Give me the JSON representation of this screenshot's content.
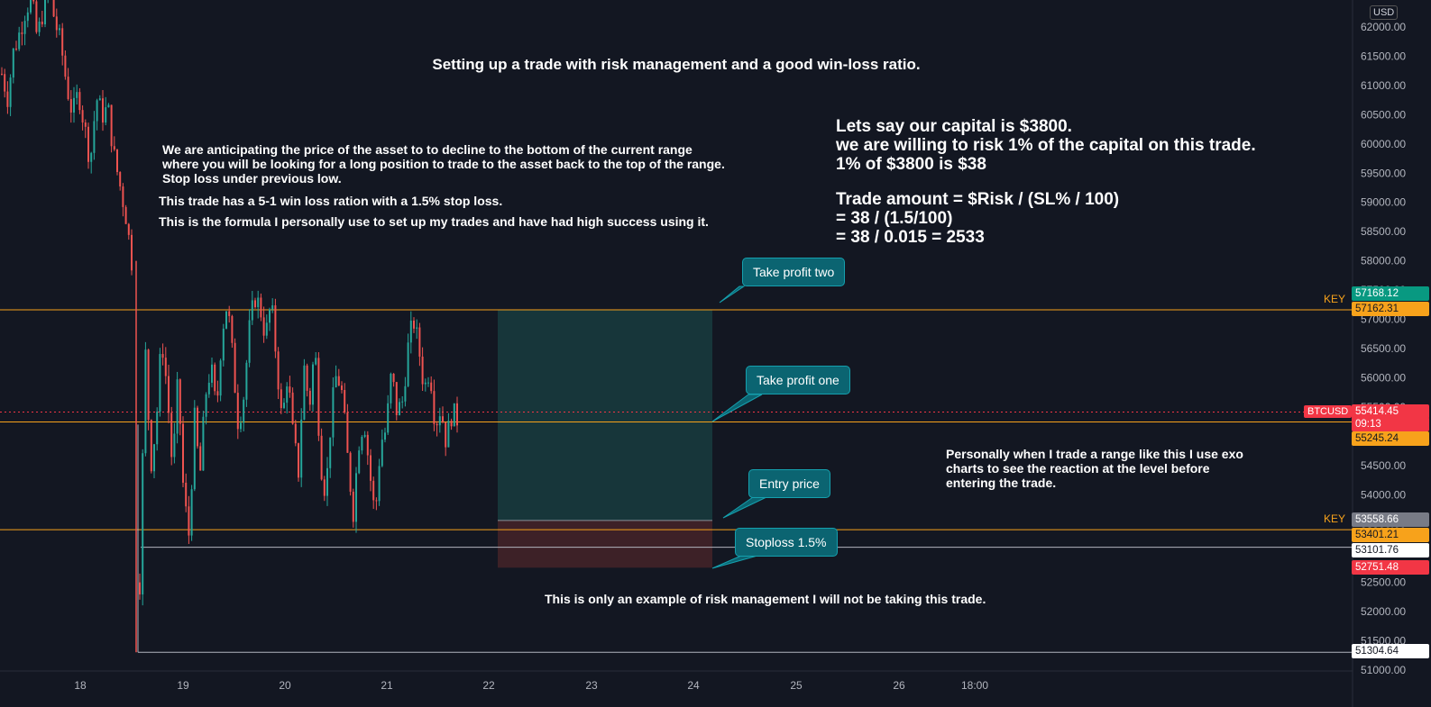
{
  "chart_data": {
    "type": "candlestick",
    "symbol": "BTCUSD",
    "currency": "USD",
    "current_price": "55414.45",
    "countdown": "09:13",
    "ylim": [
      51000,
      62500
    ],
    "y_ticks": [
      62000,
      61500,
      61000,
      60500,
      60000,
      59500,
      59000,
      58500,
      58000,
      57500,
      57000,
      56500,
      56000,
      55500,
      55000,
      54500,
      54000,
      53500,
      53000,
      52500,
      52000,
      51500,
      51000
    ],
    "x_ticks": [
      "18",
      "19",
      "20",
      "21",
      "22",
      "23",
      "24",
      "25",
      "26",
      "18:00"
    ],
    "price_path": [
      [
        61200,
        60800,
        61600,
        61900,
        62300,
        62500,
        61800,
        62300,
        62600,
        62100,
        61700,
        61000,
        60500,
        60900,
        60300,
        59700,
        60800,
        60500,
        60600,
        59800,
        59300,
        58800,
        58000
      ],
      [
        52500,
        56500,
        54500,
        55200,
        56700,
        55800,
        54400,
        56000,
        54000,
        53300,
        55300,
        54300,
        55700,
        56200,
        55400,
        56800,
        57300,
        56300,
        55200,
        55700,
        56800,
        57400,
        57200,
        56700,
        57300,
        56300,
        55200,
        56100,
        55000,
        54400,
        56200,
        55500,
        56600,
        54600,
        54000,
        55400,
        56100,
        55700,
        54600,
        53700,
        54900,
        55300,
        54400,
        53600,
        54900,
        55100,
        56100,
        55400,
        55600,
        56500,
        57000,
        56500,
        55800,
        56200,
        55200,
        55500,
        54900,
        55400,
        55300
      ]
    ],
    "levels": [
      {
        "name": "KEY",
        "price": "57162.31",
        "color": "#f7a21b"
      },
      {
        "name": "",
        "price": "55245.24",
        "color": "#f7a21b"
      },
      {
        "name": "KEY",
        "price": "53401.21",
        "color": "#f7a21b"
      },
      {
        "name": "",
        "price": "53101.76",
        "color": "#b2b5be"
      },
      {
        "name": "",
        "price": "51304.64",
        "color": "#b2b5be"
      }
    ],
    "price_labels": [
      {
        "price": "57168.12",
        "bg": "#089981",
        "fg": "#ffffff"
      },
      {
        "price": "57162.31",
        "bg": "#f7a21b",
        "fg": "#131722"
      },
      {
        "price": "55414.45",
        "bg": "#f23645",
        "fg": "#ffffff"
      },
      {
        "price": "55245.24",
        "bg": "#f7a21b",
        "fg": "#131722"
      },
      {
        "price": "53558.66",
        "bg": "#787b86",
        "fg": "#ffffff"
      },
      {
        "price": "53401.21",
        "bg": "#f7a21b",
        "fg": "#131722"
      },
      {
        "price": "53101.76",
        "bg": "#ffffff",
        "fg": "#131722"
      },
      {
        "price": "52751.48",
        "bg": "#f23645",
        "fg": "#ffffff"
      },
      {
        "price": "51304.64",
        "bg": "#ffffff",
        "fg": "#131722"
      }
    ],
    "position": {
      "entry": 53558.66,
      "take_profit": 57168.12,
      "stop_loss": 52751.48
    },
    "colors": {
      "up": "#26a69a",
      "down": "#ef5350",
      "background": "#131722",
      "text": "#b2b5be",
      "profit_zone": "#17363a",
      "loss_zone": "#3d2127"
    }
  },
  "annotations": {
    "title": "Setting up a trade with risk management and a good win-loss ratio.",
    "left_lines": [
      "We are anticipating the price of the asset to to decline to the bottom of the current range",
      "where you will be looking for a long position to trade to the asset back to the top of the range.",
      "Stop loss under previous low."
    ],
    "win_loss": "This trade has a 5-1 win loss ration with a 1.5% stop loss.",
    "formula_note": "This is the formula I personally use to set up my trades and have had high success using it.",
    "right_lines": [
      "Lets say our capital is $3800.",
      "we are willing to risk 1% of the capital on this trade.",
      "1% of $3800 is $38"
    ],
    "formula_lines": [
      "Trade amount = $Risk / (SL% / 100)",
      "= 38 / (1.5/100)",
      "= 38 / 0.015 = 2533"
    ],
    "exo_lines": [
      "Personally when I trade a range like this I use exo",
      "charts to see the reaction at the level before",
      "entering the trade."
    ],
    "disclaimer": "This is only an example of risk management I will not be taking this trade.",
    "bubbles": {
      "tp2": "Take profit two",
      "tp1": "Take profit one",
      "entry": "Entry price",
      "stop": "Stoploss 1.5%"
    }
  }
}
